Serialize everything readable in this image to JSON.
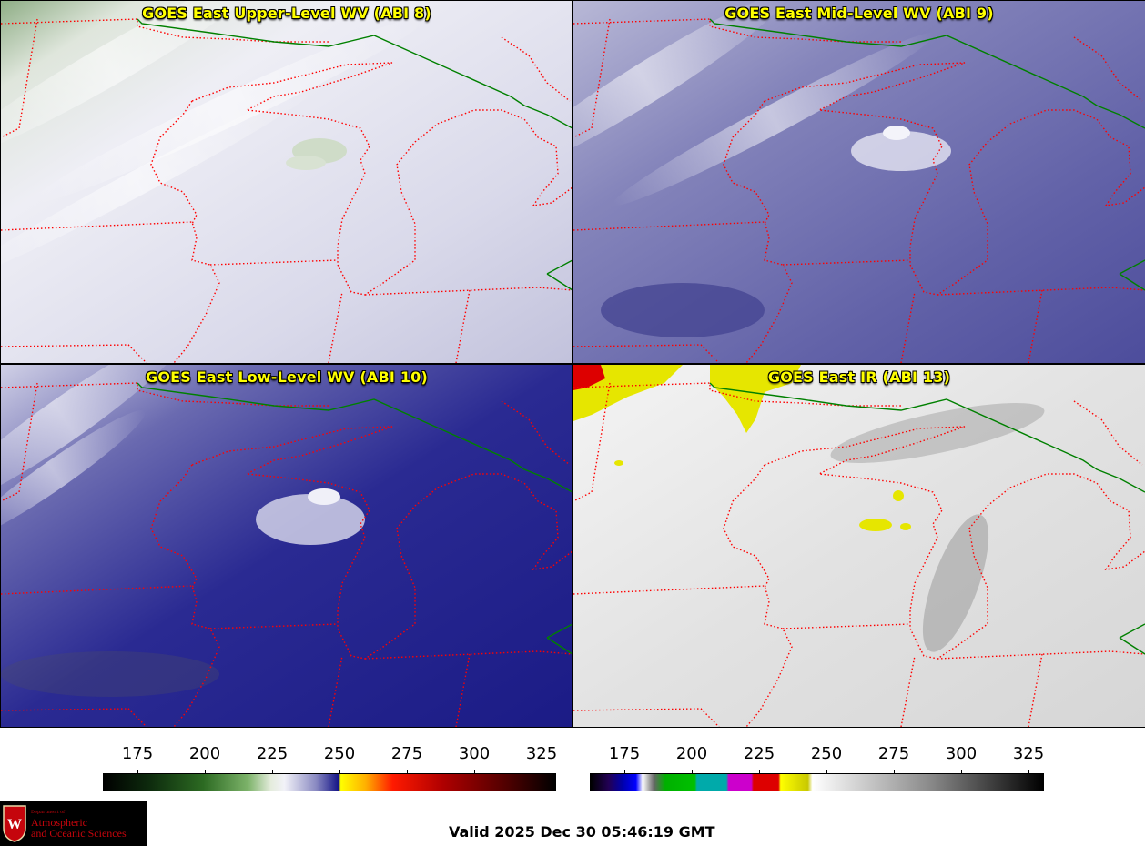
{
  "panels": [
    {
      "title": "GOES East Upper-Level WV (ABI 8)"
    },
    {
      "title": "GOES East Mid-Level WV (ABI 9)"
    },
    {
      "title": "GOES East Low-Level WV (ABI 10)"
    },
    {
      "title": "GOES East IR (ABI 13)"
    }
  ],
  "colorbars": [
    {
      "ticks": [
        "175",
        "200",
        "225",
        "250",
        "275",
        "300",
        "325"
      ]
    },
    {
      "ticks": [
        "175",
        "200",
        "225",
        "250",
        "275",
        "300",
        "325"
      ]
    }
  ],
  "logo": {
    "dept": "Department of",
    "line1": "Atmospheric",
    "line2": "and Oceanic Sciences"
  },
  "valid_time": "Valid 2025 Dec 30 05:46:19 GMT",
  "colors": {
    "state_border": "#ff0000",
    "intl_border": "#008000",
    "title": "#ffff00"
  }
}
